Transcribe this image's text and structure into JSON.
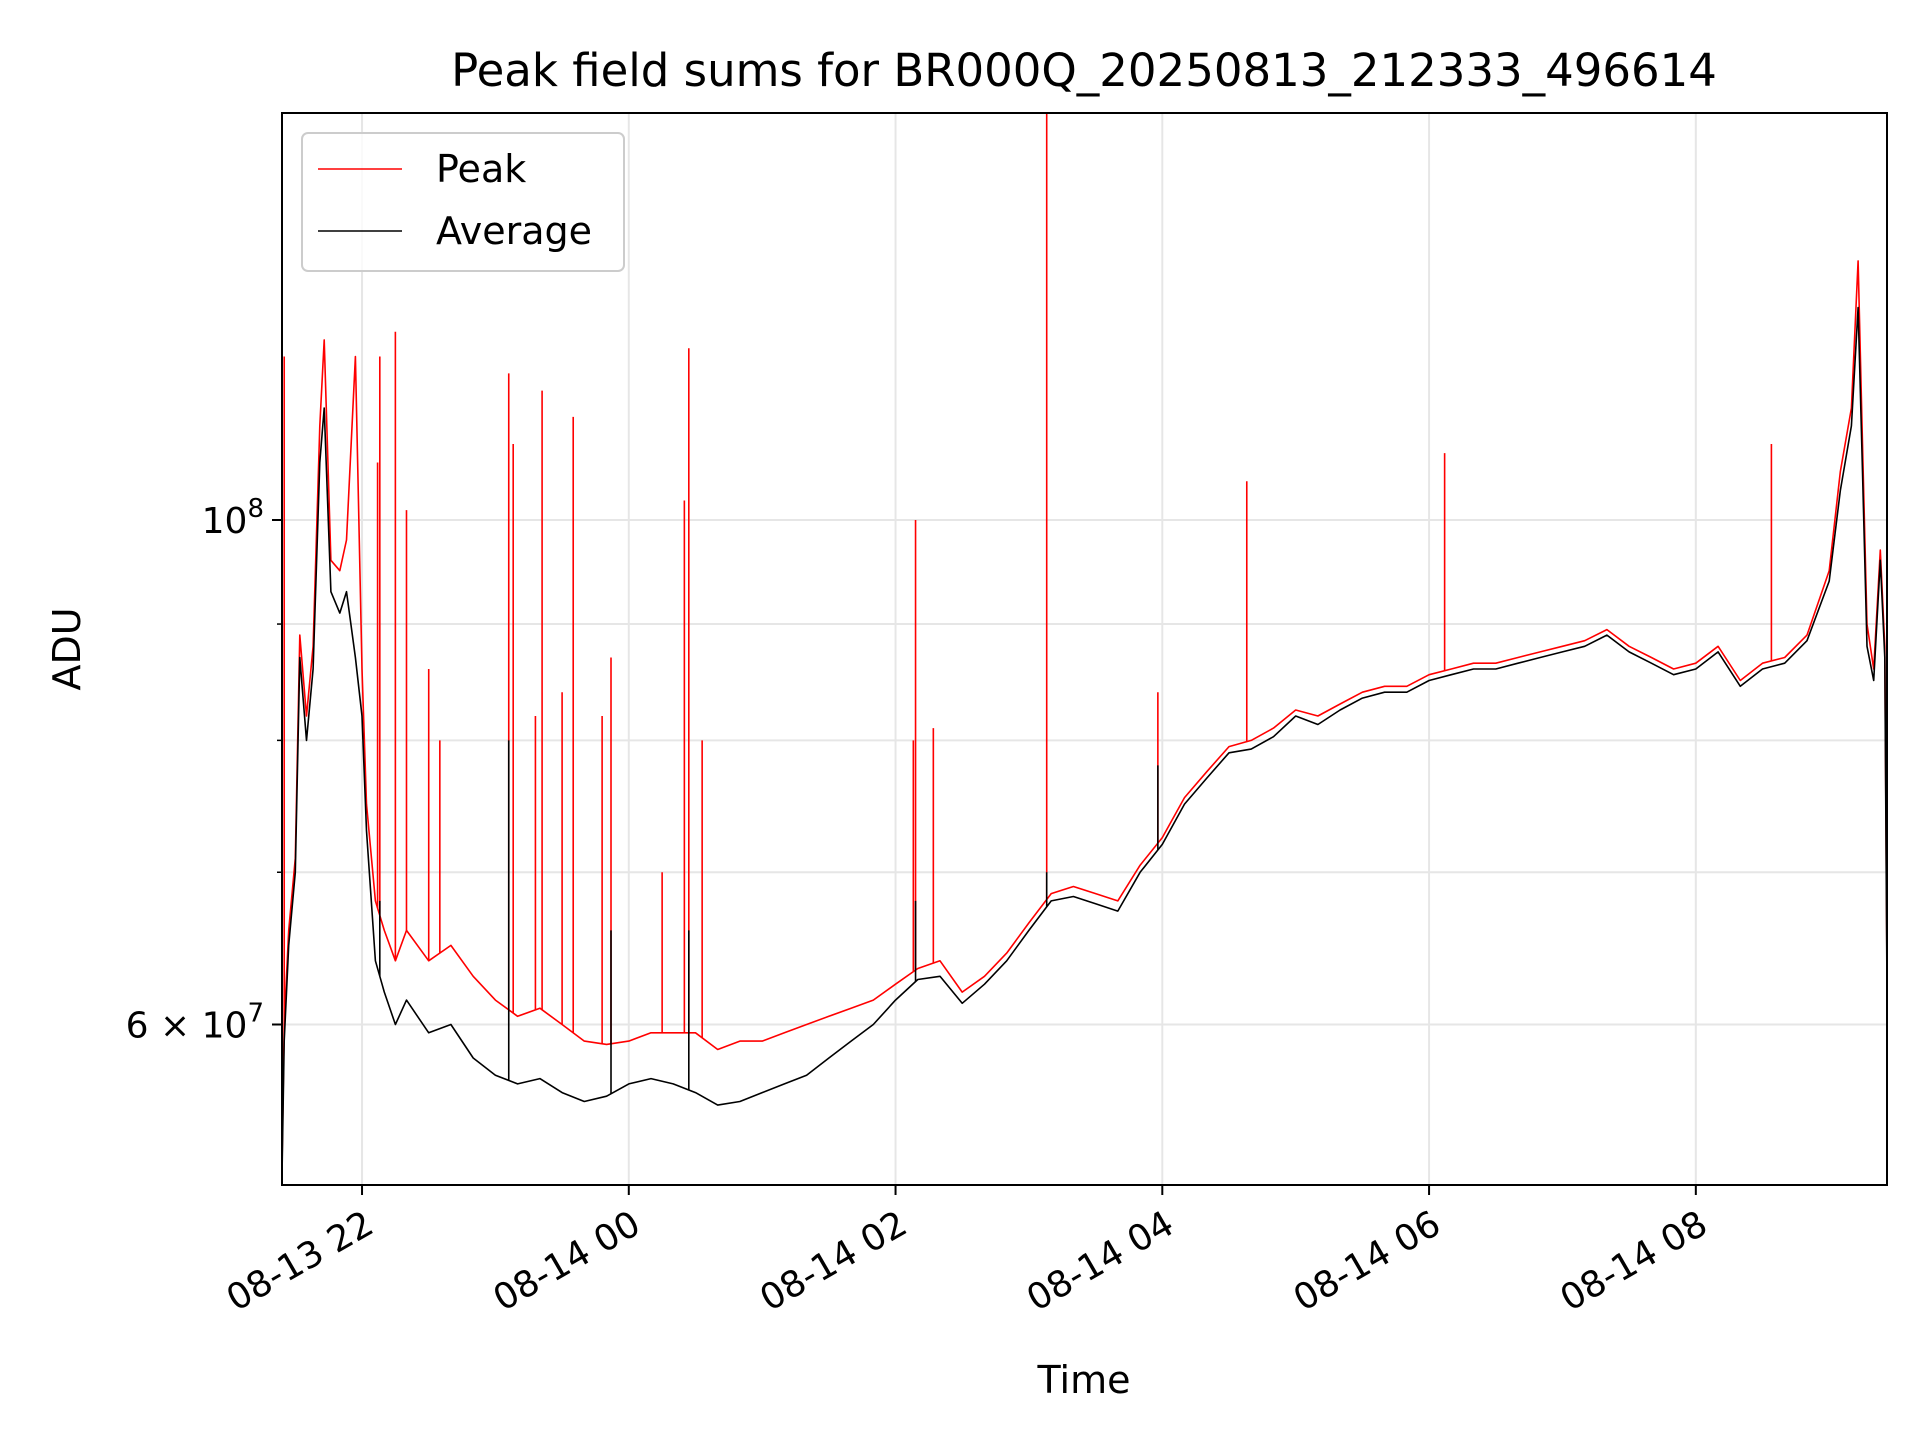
{
  "chart_data": {
    "type": "line",
    "title": "Peak field sums for BR000Q_20250813_212333_496614",
    "xlabel": "Time",
    "ylabel": "ADU",
    "yscale": "log",
    "xlim": [
      "2025-08-13 21:24",
      "2025-08-14 09:26"
    ],
    "ylim": [
      51000000,
      151000000
    ],
    "grid": true,
    "legend_position": "upper-left",
    "x_ticks": [
      {
        "t": "2025-08-13 22:00",
        "label": "08-13 22"
      },
      {
        "t": "2025-08-14 00:00",
        "label": "08-14 00"
      },
      {
        "t": "2025-08-14 02:00",
        "label": "08-14 02"
      },
      {
        "t": "2025-08-14 04:00",
        "label": "08-14 04"
      },
      {
        "t": "2025-08-14 06:00",
        "label": "08-14 06"
      },
      {
        "t": "2025-08-14 08:00",
        "label": "08-14 08"
      }
    ],
    "y_ticks": [
      {
        "value": 100000000,
        "base": "10",
        "exp": "8",
        "mult": ""
      },
      {
        "value": 60000000,
        "base": "10",
        "exp": "7",
        "mult": "6 × "
      }
    ],
    "y_minor_ticks": [
      70000000,
      80000000,
      90000000
    ],
    "series": [
      {
        "name": "Peak",
        "color": "#ff0000",
        "points": [
          [
            "2025-08-13 21:24",
            52000000
          ],
          [
            "2025-08-13 21:25",
            60000000
          ],
          [
            "2025-08-13 21:27",
            66000000
          ],
          [
            "2025-08-13 21:30",
            71000000
          ],
          [
            "2025-08-13 21:32",
            89000000
          ],
          [
            "2025-08-13 21:35",
            82000000
          ],
          [
            "2025-08-13 21:38",
            88000000
          ],
          [
            "2025-08-13 21:41",
            110000000
          ],
          [
            "2025-08-13 21:43",
            120000000
          ],
          [
            "2025-08-13 21:46",
            96000000
          ],
          [
            "2025-08-13 21:50",
            95000000
          ],
          [
            "2025-08-13 21:53",
            98000000
          ],
          [
            "2025-08-13 21:57",
            118000000
          ],
          [
            "2025-08-13 22:00",
            86000000
          ],
          [
            "2025-08-13 22:02",
            75000000
          ],
          [
            "2025-08-13 22:06",
            68000000
          ],
          [
            "2025-08-13 22:10",
            66000000
          ],
          [
            "2025-08-13 22:15",
            64000000
          ],
          [
            "2025-08-13 22:20",
            66000000
          ],
          [
            "2025-08-13 22:30",
            64000000
          ],
          [
            "2025-08-13 22:40",
            65000000
          ],
          [
            "2025-08-13 22:50",
            63000000
          ],
          [
            "2025-08-13 23:00",
            61500000
          ],
          [
            "2025-08-13 23:10",
            60500000
          ],
          [
            "2025-08-13 23:20",
            61000000
          ],
          [
            "2025-08-13 23:30",
            60000000
          ],
          [
            "2025-08-13 23:40",
            59000000
          ],
          [
            "2025-08-13 23:50",
            58800000
          ],
          [
            "2025-08-14 00:00",
            59000000
          ],
          [
            "2025-08-14 00:10",
            59500000
          ],
          [
            "2025-08-14 00:20",
            59500000
          ],
          [
            "2025-08-14 00:30",
            59500000
          ],
          [
            "2025-08-14 00:40",
            58500000
          ],
          [
            "2025-08-14 00:50",
            59000000
          ],
          [
            "2025-08-14 01:00",
            59000000
          ],
          [
            "2025-08-14 01:10",
            59500000
          ],
          [
            "2025-08-14 01:20",
            60000000
          ],
          [
            "2025-08-14 01:30",
            60500000
          ],
          [
            "2025-08-14 01:40",
            61000000
          ],
          [
            "2025-08-14 01:50",
            61500000
          ],
          [
            "2025-08-14 02:00",
            62500000
          ],
          [
            "2025-08-14 02:10",
            63500000
          ],
          [
            "2025-08-14 02:20",
            64000000
          ],
          [
            "2025-08-14 02:30",
            62000000
          ],
          [
            "2025-08-14 02:40",
            63000000
          ],
          [
            "2025-08-14 02:50",
            64500000
          ],
          [
            "2025-08-14 03:00",
            66500000
          ],
          [
            "2025-08-14 03:10",
            68500000
          ],
          [
            "2025-08-14 03:20",
            69000000
          ],
          [
            "2025-08-14 03:30",
            68500000
          ],
          [
            "2025-08-14 03:40",
            68000000
          ],
          [
            "2025-08-14 03:50",
            70500000
          ],
          [
            "2025-08-14 04:00",
            72500000
          ],
          [
            "2025-08-14 04:10",
            75500000
          ],
          [
            "2025-08-14 04:20",
            77500000
          ],
          [
            "2025-08-14 04:30",
            79500000
          ],
          [
            "2025-08-14 04:40",
            80000000
          ],
          [
            "2025-08-14 04:50",
            81000000
          ],
          [
            "2025-08-14 05:00",
            82500000
          ],
          [
            "2025-08-14 05:10",
            82000000
          ],
          [
            "2025-08-14 05:20",
            83000000
          ],
          [
            "2025-08-14 05:30",
            84000000
          ],
          [
            "2025-08-14 05:40",
            84500000
          ],
          [
            "2025-08-14 05:50",
            84500000
          ],
          [
            "2025-08-14 06:00",
            85500000
          ],
          [
            "2025-08-14 06:10",
            86000000
          ],
          [
            "2025-08-14 06:20",
            86500000
          ],
          [
            "2025-08-14 06:30",
            86500000
          ],
          [
            "2025-08-14 06:40",
            87000000
          ],
          [
            "2025-08-14 06:50",
            87500000
          ],
          [
            "2025-08-14 07:00",
            88000000
          ],
          [
            "2025-08-14 07:10",
            88500000
          ],
          [
            "2025-08-14 07:20",
            89500000
          ],
          [
            "2025-08-14 07:30",
            88000000
          ],
          [
            "2025-08-14 07:40",
            87000000
          ],
          [
            "2025-08-14 07:50",
            86000000
          ],
          [
            "2025-08-14 08:00",
            86500000
          ],
          [
            "2025-08-14 08:10",
            88000000
          ],
          [
            "2025-08-14 08:20",
            85000000
          ],
          [
            "2025-08-14 08:30",
            86500000
          ],
          [
            "2025-08-14 08:40",
            87000000
          ],
          [
            "2025-08-14 08:50",
            89000000
          ],
          [
            "2025-08-14 09:00",
            95000000
          ],
          [
            "2025-08-14 09:05",
            105000000
          ],
          [
            "2025-08-14 09:10",
            112000000
          ],
          [
            "2025-08-14 09:13",
            130000000
          ],
          [
            "2025-08-14 09:15",
            108000000
          ],
          [
            "2025-08-14 09:17",
            90000000
          ],
          [
            "2025-08-14 09:20",
            86000000
          ],
          [
            "2025-08-14 09:23",
            97000000
          ],
          [
            "2025-08-14 09:25",
            88000000
          ],
          [
            "2025-08-14 09:26",
            63000000
          ]
        ],
        "spikes": [
          [
            "2025-08-13 21:25",
            118000000
          ],
          [
            "2025-08-13 22:07",
            106000000
          ],
          [
            "2025-08-13 22:08",
            118000000
          ],
          [
            "2025-08-13 22:15",
            121000000
          ],
          [
            "2025-08-13 22:20",
            101000000
          ],
          [
            "2025-08-13 22:30",
            86000000
          ],
          [
            "2025-08-13 22:35",
            80000000
          ],
          [
            "2025-08-13 23:06",
            116000000
          ],
          [
            "2025-08-13 23:08",
            108000000
          ],
          [
            "2025-08-13 23:18",
            82000000
          ],
          [
            "2025-08-13 23:21",
            114000000
          ],
          [
            "2025-08-13 23:30",
            84000000
          ],
          [
            "2025-08-13 23:35",
            111000000
          ],
          [
            "2025-08-13 23:48",
            82000000
          ],
          [
            "2025-08-13 23:52",
            87000000
          ],
          [
            "2025-08-14 00:15",
            70000000
          ],
          [
            "2025-08-14 00:25",
            102000000
          ],
          [
            "2025-08-14 00:27",
            119000000
          ],
          [
            "2025-08-14 00:33",
            80000000
          ],
          [
            "2025-08-14 02:08",
            80000000
          ],
          [
            "2025-08-14 02:09",
            100000000
          ],
          [
            "2025-08-14 02:17",
            81000000
          ],
          [
            "2025-08-14 03:08",
            151000000
          ],
          [
            "2025-08-14 03:58",
            84000000
          ],
          [
            "2025-08-14 04:38",
            104000000
          ],
          [
            "2025-08-14 06:07",
            107000000
          ],
          [
            "2025-08-14 08:34",
            108000000
          ]
        ]
      },
      {
        "name": "Average",
        "color": "#000000",
        "points": [
          [
            "2025-08-13 21:24",
            51500000
          ],
          [
            "2025-08-13 21:25",
            59000000
          ],
          [
            "2025-08-13 21:27",
            65000000
          ],
          [
            "2025-08-13 21:30",
            70000000
          ],
          [
            "2025-08-13 21:32",
            87000000
          ],
          [
            "2025-08-13 21:35",
            80000000
          ],
          [
            "2025-08-13 21:38",
            86000000
          ],
          [
            "2025-08-13 21:41",
            106000000
          ],
          [
            "2025-08-13 21:43",
            112000000
          ],
          [
            "2025-08-13 21:46",
            93000000
          ],
          [
            "2025-08-13 21:50",
            91000000
          ],
          [
            "2025-08-13 21:53",
            93000000
          ],
          [
            "2025-08-13 21:57",
            87000000
          ],
          [
            "2025-08-13 22:00",
            82000000
          ],
          [
            "2025-08-13 22:02",
            73000000
          ],
          [
            "2025-08-13 22:06",
            64000000
          ],
          [
            "2025-08-13 22:10",
            62000000
          ],
          [
            "2025-08-13 22:15",
            60000000
          ],
          [
            "2025-08-13 22:20",
            61500000
          ],
          [
            "2025-08-13 22:30",
            59500000
          ],
          [
            "2025-08-13 22:40",
            60000000
          ],
          [
            "2025-08-13 22:50",
            58000000
          ],
          [
            "2025-08-13 23:00",
            57000000
          ],
          [
            "2025-08-13 23:10",
            56500000
          ],
          [
            "2025-08-13 23:20",
            56800000
          ],
          [
            "2025-08-13 23:30",
            56000000
          ],
          [
            "2025-08-13 23:40",
            55500000
          ],
          [
            "2025-08-13 23:50",
            55800000
          ],
          [
            "2025-08-14 00:00",
            56500000
          ],
          [
            "2025-08-14 00:10",
            56800000
          ],
          [
            "2025-08-14 00:20",
            56500000
          ],
          [
            "2025-08-14 00:30",
            56000000
          ],
          [
            "2025-08-14 00:40",
            55300000
          ],
          [
            "2025-08-14 00:50",
            55500000
          ],
          [
            "2025-08-14 01:00",
            56000000
          ],
          [
            "2025-08-14 01:10",
            56500000
          ],
          [
            "2025-08-14 01:20",
            57000000
          ],
          [
            "2025-08-14 01:30",
            58000000
          ],
          [
            "2025-08-14 01:40",
            59000000
          ],
          [
            "2025-08-14 01:50",
            60000000
          ],
          [
            "2025-08-14 02:00",
            61500000
          ],
          [
            "2025-08-14 02:10",
            62800000
          ],
          [
            "2025-08-14 02:20",
            63000000
          ],
          [
            "2025-08-14 02:30",
            61300000
          ],
          [
            "2025-08-14 02:40",
            62500000
          ],
          [
            "2025-08-14 02:50",
            64000000
          ],
          [
            "2025-08-14 03:00",
            66000000
          ],
          [
            "2025-08-14 03:10",
            68000000
          ],
          [
            "2025-08-14 03:20",
            68300000
          ],
          [
            "2025-08-14 03:30",
            67800000
          ],
          [
            "2025-08-14 03:40",
            67300000
          ],
          [
            "2025-08-14 03:50",
            70000000
          ],
          [
            "2025-08-14 04:00",
            72000000
          ],
          [
            "2025-08-14 04:10",
            75000000
          ],
          [
            "2025-08-14 04:20",
            77000000
          ],
          [
            "2025-08-14 04:30",
            79000000
          ],
          [
            "2025-08-14 04:40",
            79300000
          ],
          [
            "2025-08-14 04:50",
            80300000
          ],
          [
            "2025-08-14 05:00",
            82000000
          ],
          [
            "2025-08-14 05:10",
            81300000
          ],
          [
            "2025-08-14 05:20",
            82500000
          ],
          [
            "2025-08-14 05:30",
            83500000
          ],
          [
            "2025-08-14 05:40",
            84000000
          ],
          [
            "2025-08-14 05:50",
            84000000
          ],
          [
            "2025-08-14 06:00",
            85000000
          ],
          [
            "2025-08-14 06:10",
            85500000
          ],
          [
            "2025-08-14 06:20",
            86000000
          ],
          [
            "2025-08-14 06:30",
            86000000
          ],
          [
            "2025-08-14 06:40",
            86500000
          ],
          [
            "2025-08-14 06:50",
            87000000
          ],
          [
            "2025-08-14 07:00",
            87500000
          ],
          [
            "2025-08-14 07:10",
            88000000
          ],
          [
            "2025-08-14 07:20",
            89000000
          ],
          [
            "2025-08-14 07:30",
            87500000
          ],
          [
            "2025-08-14 07:40",
            86500000
          ],
          [
            "2025-08-14 07:50",
            85500000
          ],
          [
            "2025-08-14 08:00",
            86000000
          ],
          [
            "2025-08-14 08:10",
            87500000
          ],
          [
            "2025-08-14 08:20",
            84500000
          ],
          [
            "2025-08-14 08:30",
            86000000
          ],
          [
            "2025-08-14 08:40",
            86500000
          ],
          [
            "2025-08-14 08:50",
            88500000
          ],
          [
            "2025-08-14 09:00",
            94000000
          ],
          [
            "2025-08-14 09:05",
            103000000
          ],
          [
            "2025-08-14 09:10",
            110000000
          ],
          [
            "2025-08-14 09:13",
            124000000
          ],
          [
            "2025-08-14 09:15",
            105000000
          ],
          [
            "2025-08-14 09:17",
            88000000
          ],
          [
            "2025-08-14 09:20",
            85000000
          ],
          [
            "2025-08-14 09:23",
            96000000
          ],
          [
            "2025-08-14 09:25",
            87000000
          ],
          [
            "2025-08-14 09:26",
            62000000
          ]
        ],
        "spikes": [
          [
            "2025-08-13 22:08",
            68000000
          ],
          [
            "2025-08-13 23:06",
            80000000
          ],
          [
            "2025-08-13 23:52",
            66000000
          ],
          [
            "2025-08-14 00:27",
            66000000
          ],
          [
            "2025-08-14 02:09",
            68000000
          ],
          [
            "2025-08-14 03:08",
            70000000
          ],
          [
            "2025-08-14 03:58",
            78000000
          ]
        ]
      }
    ]
  }
}
